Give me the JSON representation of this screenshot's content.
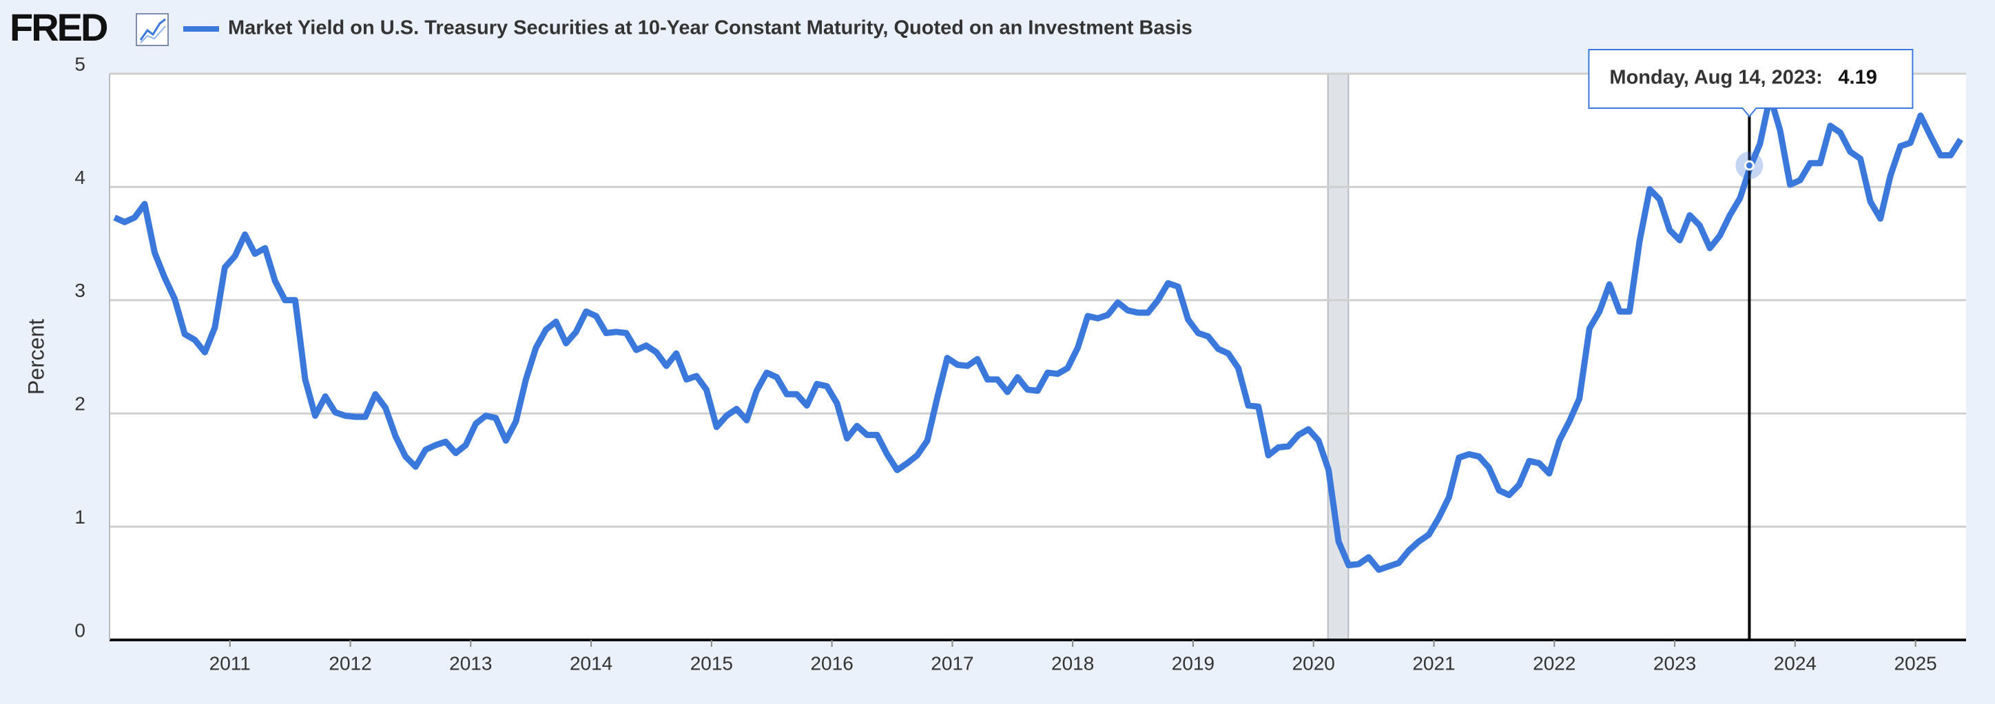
{
  "brand": "FRED",
  "chart_data": {
    "type": "line",
    "ylabel": "Percent",
    "x": [
      2010.042,
      2010.125,
      2010.208,
      2010.292,
      2010.375,
      2010.458,
      2010.542,
      2010.625,
      2010.708,
      2010.792,
      2010.875,
      2010.958,
      2011.042,
      2011.125,
      2011.208,
      2011.292,
      2011.375,
      2011.458,
      2011.542,
      2011.625,
      2011.708,
      2011.792,
      2011.875,
      2011.958,
      2012.042,
      2012.125,
      2012.208,
      2012.292,
      2012.375,
      2012.458,
      2012.542,
      2012.625,
      2012.708,
      2012.792,
      2012.875,
      2012.958,
      2013.042,
      2013.125,
      2013.208,
      2013.292,
      2013.375,
      2013.458,
      2013.542,
      2013.625,
      2013.708,
      2013.792,
      2013.875,
      2013.958,
      2014.042,
      2014.125,
      2014.208,
      2014.292,
      2014.375,
      2014.458,
      2014.542,
      2014.625,
      2014.708,
      2014.792,
      2014.875,
      2014.958,
      2015.042,
      2015.125,
      2015.208,
      2015.292,
      2015.375,
      2015.458,
      2015.542,
      2015.625,
      2015.708,
      2015.792,
      2015.875,
      2015.958,
      2016.042,
      2016.125,
      2016.208,
      2016.292,
      2016.375,
      2016.458,
      2016.542,
      2016.625,
      2016.708,
      2016.792,
      2016.875,
      2016.958,
      2017.042,
      2017.125,
      2017.208,
      2017.292,
      2017.375,
      2017.458,
      2017.542,
      2017.625,
      2017.708,
      2017.792,
      2017.875,
      2017.958,
      2018.042,
      2018.125,
      2018.208,
      2018.292,
      2018.375,
      2018.458,
      2018.542,
      2018.625,
      2018.708,
      2018.792,
      2018.875,
      2018.958,
      2019.042,
      2019.125,
      2019.208,
      2019.292,
      2019.375,
      2019.458,
      2019.542,
      2019.625,
      2019.708,
      2019.792,
      2019.875,
      2019.958,
      2020.042,
      2020.125,
      2020.208,
      2020.292,
      2020.375,
      2020.458,
      2020.542,
      2020.625,
      2020.708,
      2020.792,
      2020.875,
      2020.958,
      2021.042,
      2021.125,
      2021.208,
      2021.292,
      2021.375,
      2021.458,
      2021.542,
      2021.625,
      2021.708,
      2021.792,
      2021.875,
      2021.958,
      2022.042,
      2022.125,
      2022.208,
      2022.292,
      2022.375,
      2022.458,
      2022.542,
      2022.625,
      2022.708,
      2022.792,
      2022.875,
      2022.958,
      2023.042,
      2023.125,
      2023.208,
      2023.292,
      2023.375,
      2023.458,
      2023.542,
      2023.625,
      2023.708,
      2023.792,
      2023.875,
      2023.958,
      2024.042,
      2024.125,
      2024.208,
      2024.292,
      2024.375,
      2024.458,
      2024.542,
      2024.625,
      2024.708,
      2024.792,
      2024.875,
      2024.958,
      2025.042,
      2025.125,
      2025.208,
      2025.292,
      2025.375
    ],
    "series": [
      {
        "name": "Market Yield on U.S. Treasury Securities at 10-Year Constant Maturity, Quoted on an Investment Basis",
        "color": "#3b78dc",
        "values": [
          3.73,
          3.69,
          3.73,
          3.85,
          3.42,
          3.2,
          3.01,
          2.7,
          2.65,
          2.54,
          2.76,
          3.29,
          3.39,
          3.58,
          3.41,
          3.46,
          3.17,
          3.0,
          3.0,
          2.3,
          1.98,
          2.15,
          2.01,
          1.98,
          1.97,
          1.97,
          2.17,
          2.05,
          1.8,
          1.62,
          1.53,
          1.68,
          1.72,
          1.75,
          1.65,
          1.72,
          1.91,
          1.98,
          1.96,
          1.76,
          1.93,
          2.3,
          2.58,
          2.74,
          2.81,
          2.62,
          2.72,
          2.9,
          2.86,
          2.71,
          2.72,
          2.71,
          2.56,
          2.6,
          2.54,
          2.42,
          2.53,
          2.3,
          2.33,
          2.21,
          1.88,
          1.98,
          2.04,
          1.94,
          2.2,
          2.36,
          2.32,
          2.17,
          2.17,
          2.07,
          2.26,
          2.24,
          2.09,
          1.78,
          1.89,
          1.81,
          1.81,
          1.64,
          1.5,
          1.56,
          1.63,
          1.76,
          2.14,
          2.49,
          2.43,
          2.42,
          2.48,
          2.3,
          2.3,
          2.19,
          2.32,
          2.21,
          2.2,
          2.36,
          2.35,
          2.4,
          2.58,
          2.86,
          2.84,
          2.87,
          2.98,
          2.91,
          2.89,
          2.89,
          3.0,
          3.15,
          3.12,
          2.83,
          2.71,
          2.68,
          2.57,
          2.53,
          2.4,
          2.07,
          2.06,
          1.63,
          1.7,
          1.71,
          1.81,
          1.86,
          1.76,
          1.5,
          0.87,
          0.66,
          0.67,
          0.73,
          0.62,
          0.65,
          0.68,
          0.79,
          0.87,
          0.93,
          1.08,
          1.26,
          1.61,
          1.64,
          1.62,
          1.52,
          1.32,
          1.28,
          1.37,
          1.58,
          1.56,
          1.47,
          1.76,
          1.93,
          2.13,
          2.75,
          2.9,
          3.14,
          2.9,
          2.9,
          3.52,
          3.98,
          3.89,
          3.62,
          3.53,
          3.75,
          3.66,
          3.46,
          3.57,
          3.75,
          3.9,
          4.17,
          4.38,
          4.8,
          4.5,
          4.02,
          4.06,
          4.21,
          4.21,
          4.54,
          4.48,
          4.31,
          4.25,
          3.87,
          3.72,
          4.1,
          4.36,
          4.39,
          4.63,
          4.45,
          4.28,
          4.28,
          4.42
        ]
      }
    ],
    "xlim": [
      2010.0,
      2025.42
    ],
    "xticks": [
      2011,
      2012,
      2013,
      2014,
      2015,
      2016,
      2017,
      2018,
      2019,
      2020,
      2021,
      2022,
      2023,
      2024,
      2025
    ],
    "ylim": [
      0,
      5
    ],
    "yticks": [
      0,
      1,
      2,
      3,
      4,
      5
    ],
    "grid": true,
    "shaded": [
      [
        2020.12,
        2020.29
      ]
    ],
    "annotations": [
      {
        "label": "Monday, Aug 14, 2023:",
        "x": 2023.62,
        "value": 4.19
      }
    ]
  }
}
